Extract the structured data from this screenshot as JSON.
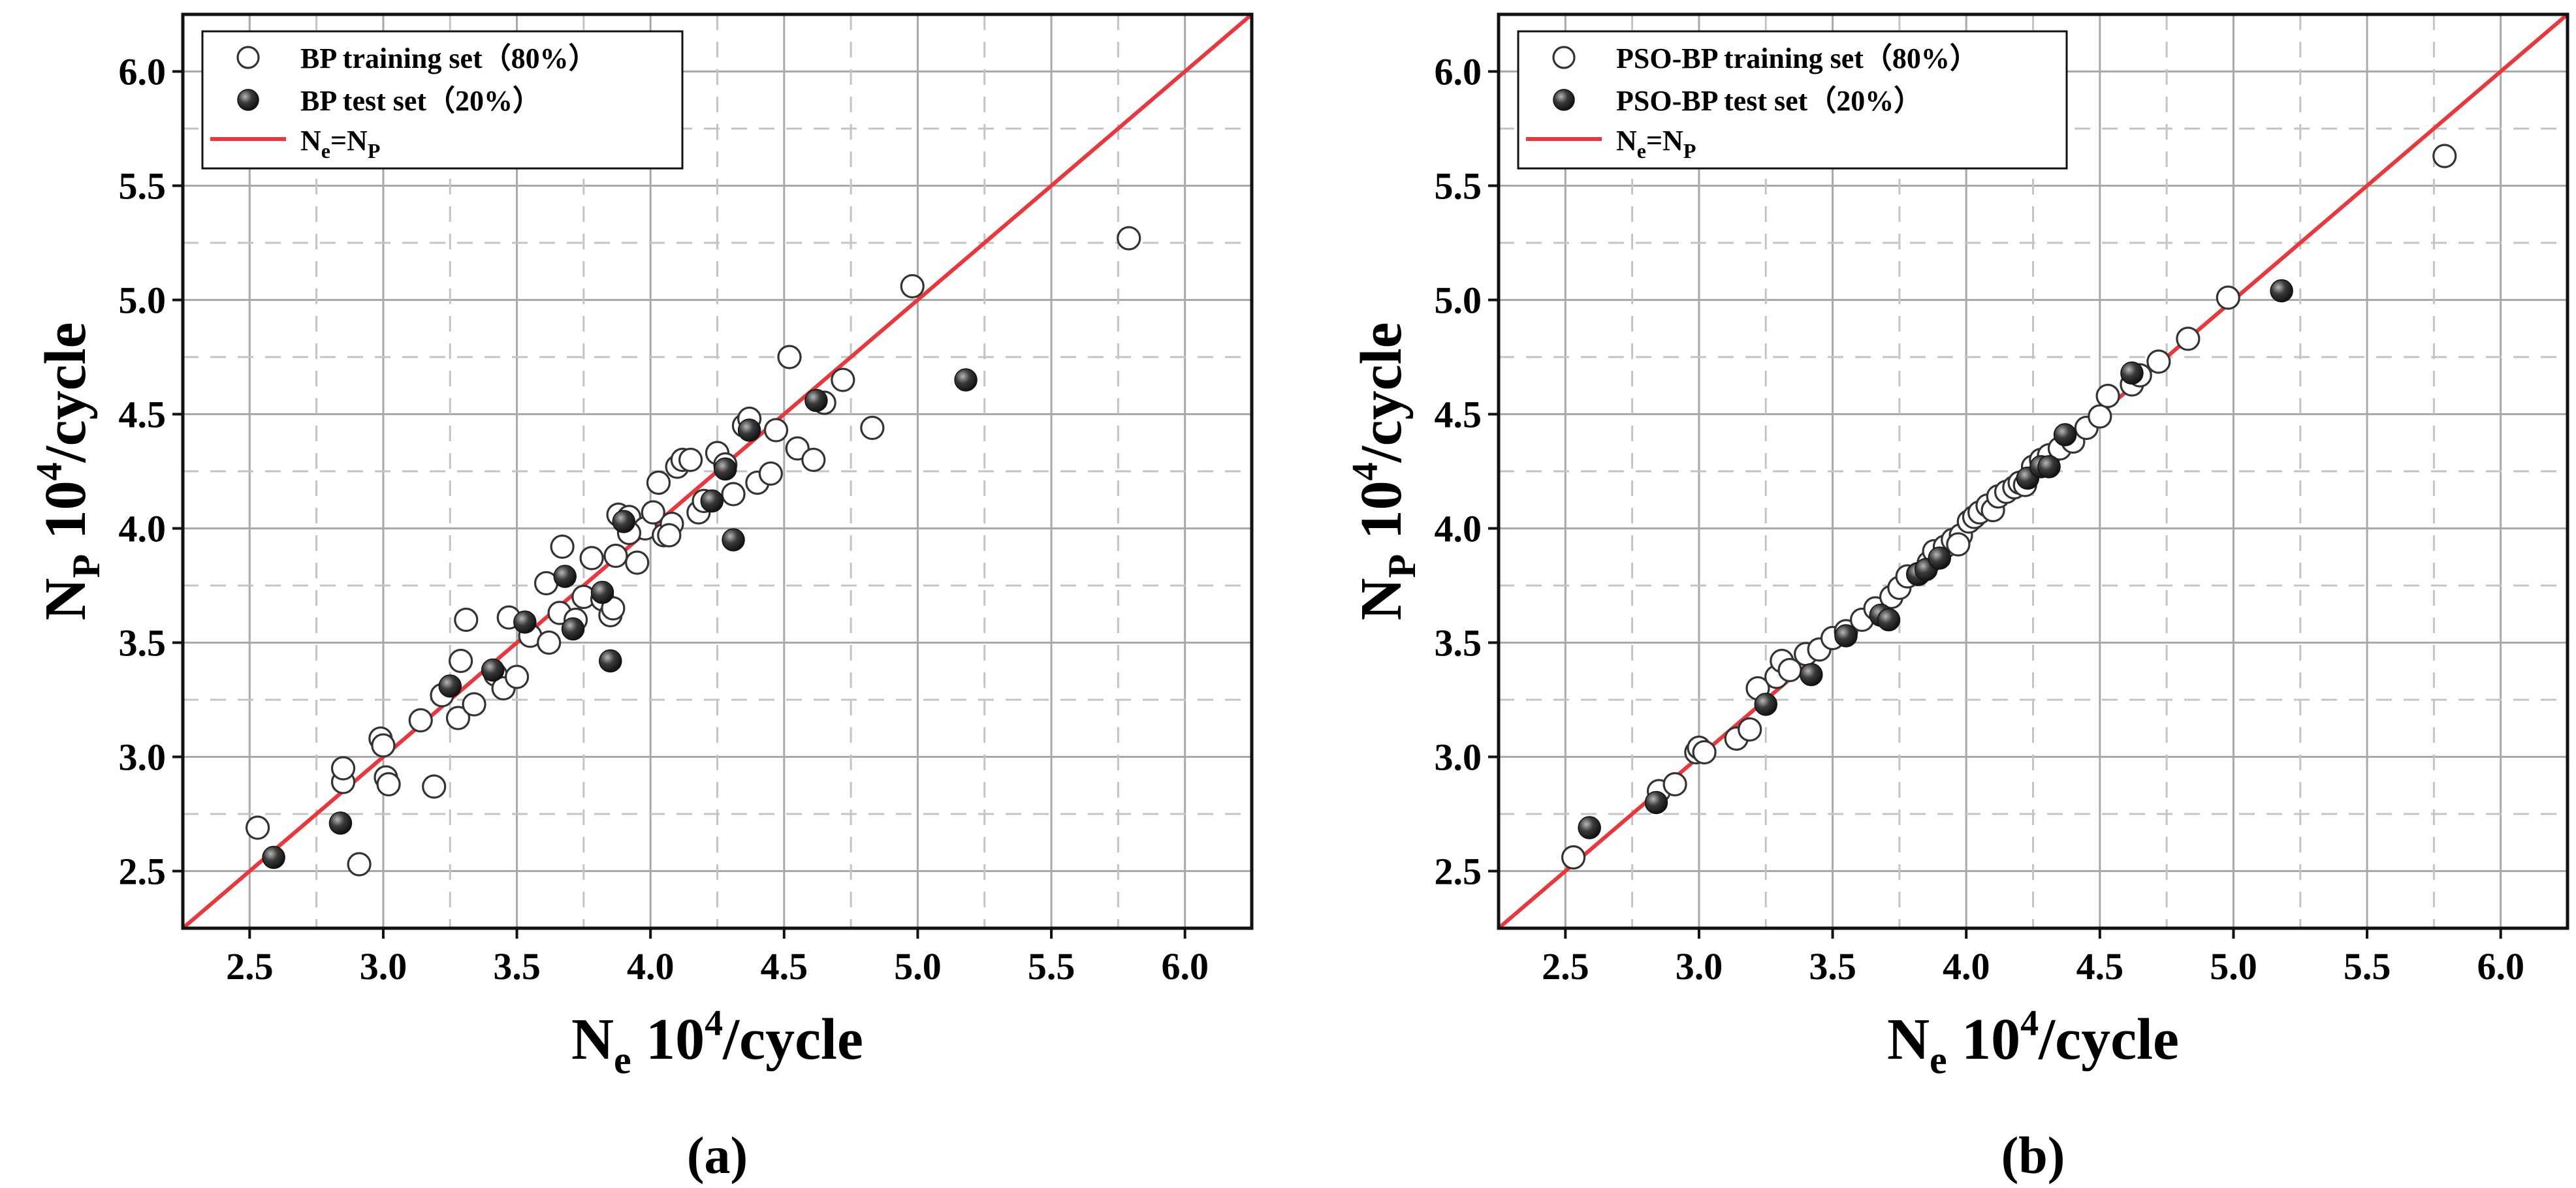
{
  "chart_data": [
    {
      "id": "a",
      "type": "scatter",
      "panel_label": "(a)",
      "xlabel": {
        "main": "N",
        "sub": "e",
        "mid": " 10",
        "sup": "4",
        "tail": "/cycle"
      },
      "ylabel": {
        "main": "N",
        "sub": "P",
        "mid": " 10",
        "sup": "4",
        "tail": "/cycle"
      },
      "xlim": [
        2.25,
        6.25
      ],
      "ylim": [
        2.25,
        6.25
      ],
      "ticks": [
        2.5,
        3.0,
        3.5,
        4.0,
        4.5,
        5.0,
        5.5,
        6.0
      ],
      "tick_labels": [
        "2.5",
        "3.0",
        "3.5",
        "4.0",
        "4.5",
        "5.0",
        "5.5",
        "6.0"
      ],
      "grid": true,
      "legend": {
        "placement": "top-left",
        "train_label": "BP training set（80%）",
        "test_label": "BP test set（20%）",
        "line_main": "N",
        "line_sub1": "e",
        "line_eq": "=N",
        "line_sub2": "P"
      },
      "colors": {
        "line": "#e8383d",
        "test_fill": "#2e2e2e",
        "train_stroke": "#333333"
      },
      "series": [
        {
          "name": "BP training set（80%）",
          "marker": "open-circle",
          "points": [
            [
              2.53,
              2.69
            ],
            [
              2.85,
              2.89
            ],
            [
              2.85,
              2.95
            ],
            [
              2.91,
              2.53
            ],
            [
              2.99,
              3.08
            ],
            [
              3.0,
              3.05
            ],
            [
              3.01,
              2.91
            ],
            [
              3.02,
              2.88
            ],
            [
              3.14,
              3.16
            ],
            [
              3.19,
              2.87
            ],
            [
              3.22,
              3.27
            ],
            [
              3.28,
              3.17
            ],
            [
              3.29,
              3.42
            ],
            [
              3.31,
              3.6
            ],
            [
              3.34,
              3.23
            ],
            [
              3.42,
              3.36
            ],
            [
              3.45,
              3.3
            ],
            [
              3.47,
              3.61
            ],
            [
              3.5,
              3.35
            ],
            [
              3.55,
              3.53
            ],
            [
              3.61,
              3.76
            ],
            [
              3.62,
              3.5
            ],
            [
              3.66,
              3.63
            ],
            [
              3.67,
              3.92
            ],
            [
              3.72,
              3.6
            ],
            [
              3.75,
              3.7
            ],
            [
              3.78,
              3.87
            ],
            [
              3.82,
              3.69
            ],
            [
              3.85,
              3.62
            ],
            [
              3.86,
              3.65
            ],
            [
              3.87,
              3.88
            ],
            [
              3.88,
              4.06
            ],
            [
              3.92,
              4.05
            ],
            [
              3.95,
              3.85
            ],
            [
              3.98,
              4.0
            ],
            [
              4.01,
              4.07
            ],
            [
              4.03,
              4.2
            ],
            [
              4.05,
              3.97
            ],
            [
              4.08,
              4.02
            ],
            [
              4.1,
              4.27
            ],
            [
              4.12,
              4.3
            ],
            [
              4.15,
              4.3
            ],
            [
              4.18,
              4.07
            ],
            [
              4.2,
              4.12
            ],
            [
              4.25,
              4.33
            ],
            [
              4.28,
              4.28
            ],
            [
              4.31,
              4.15
            ],
            [
              4.35,
              4.45
            ],
            [
              4.37,
              4.48
            ],
            [
              4.4,
              4.2
            ],
            [
              4.45,
              4.24
            ],
            [
              4.47,
              4.43
            ],
            [
              4.52,
              4.75
            ],
            [
              4.55,
              4.35
            ],
            [
              4.61,
              4.3
            ],
            [
              4.65,
              4.55
            ],
            [
              4.72,
              4.65
            ],
            [
              4.83,
              4.44
            ],
            [
              4.98,
              5.06
            ],
            [
              5.79,
              5.27
            ],
            [
              4.07,
              3.97
            ],
            [
              3.92,
              3.98
            ]
          ]
        },
        {
          "name": "BP test set（20%）",
          "marker": "filled-sphere",
          "points": [
            [
              2.59,
              2.56
            ],
            [
              2.84,
              2.71
            ],
            [
              3.25,
              3.31
            ],
            [
              3.41,
              3.38
            ],
            [
              3.53,
              3.59
            ],
            [
              3.68,
              3.79
            ],
            [
              3.71,
              3.56
            ],
            [
              3.82,
              3.72
            ],
            [
              3.85,
              3.42
            ],
            [
              3.9,
              4.03
            ],
            [
              4.23,
              4.12
            ],
            [
              4.28,
              4.26
            ],
            [
              4.31,
              3.95
            ],
            [
              4.37,
              4.43
            ],
            [
              4.62,
              4.56
            ],
            [
              5.18,
              4.65
            ]
          ]
        }
      ]
    },
    {
      "id": "b",
      "type": "scatter",
      "panel_label": "(b)",
      "xlabel": {
        "main": "N",
        "sub": "e",
        "mid": " 10",
        "sup": "4",
        "tail": "/cycle"
      },
      "ylabel": {
        "main": "N",
        "sub": "P",
        "mid": " 10",
        "sup": "4",
        "tail": "/cycle"
      },
      "xlim": [
        2.25,
        6.25
      ],
      "ylim": [
        2.25,
        6.25
      ],
      "ticks": [
        2.5,
        3.0,
        3.5,
        4.0,
        4.5,
        5.0,
        5.5,
        6.0
      ],
      "tick_labels": [
        "2.5",
        "3.0",
        "3.5",
        "4.0",
        "4.5",
        "5.0",
        "5.5",
        "6.0"
      ],
      "grid": true,
      "legend": {
        "placement": "top-left",
        "train_label": "PSO-BP training set（80%）",
        "test_label": "PSO-BP test set（20%）",
        "line_main": "N",
        "line_sub1": "e",
        "line_eq": "=N",
        "line_sub2": "P"
      },
      "colors": {
        "line": "#e8383d",
        "test_fill": "#2e2e2e",
        "train_stroke": "#333333"
      },
      "series": [
        {
          "name": "PSO-BP training set（80%）",
          "marker": "open-circle",
          "points": [
            [
              2.53,
              2.56
            ],
            [
              2.85,
              2.85
            ],
            [
              2.91,
              2.88
            ],
            [
              2.99,
              3.02
            ],
            [
              3.0,
              3.04
            ],
            [
              3.02,
              3.02
            ],
            [
              3.14,
              3.08
            ],
            [
              3.19,
              3.12
            ],
            [
              3.22,
              3.3
            ],
            [
              3.29,
              3.35
            ],
            [
              3.31,
              3.42
            ],
            [
              3.34,
              3.38
            ],
            [
              3.4,
              3.45
            ],
            [
              3.45,
              3.47
            ],
            [
              3.5,
              3.52
            ],
            [
              3.55,
              3.55
            ],
            [
              3.61,
              3.6
            ],
            [
              3.66,
              3.65
            ],
            [
              3.72,
              3.7
            ],
            [
              3.75,
              3.74
            ],
            [
              3.78,
              3.79
            ],
            [
              3.82,
              3.8
            ],
            [
              3.86,
              3.85
            ],
            [
              3.88,
              3.9
            ],
            [
              3.92,
              3.92
            ],
            [
              3.95,
              3.95
            ],
            [
              3.98,
              3.97
            ],
            [
              4.01,
              4.03
            ],
            [
              4.03,
              4.05
            ],
            [
              4.05,
              4.07
            ],
            [
              4.08,
              4.1
            ],
            [
              4.1,
              4.08
            ],
            [
              4.12,
              4.14
            ],
            [
              4.15,
              4.16
            ],
            [
              4.18,
              4.18
            ],
            [
              4.2,
              4.2
            ],
            [
              4.25,
              4.27
            ],
            [
              4.28,
              4.3
            ],
            [
              4.31,
              4.32
            ],
            [
              4.35,
              4.35
            ],
            [
              4.4,
              4.38
            ],
            [
              4.45,
              4.44
            ],
            [
              4.5,
              4.49
            ],
            [
              4.53,
              4.58
            ],
            [
              4.62,
              4.63
            ],
            [
              4.65,
              4.67
            ],
            [
              4.72,
              4.73
            ],
            [
              4.83,
              4.83
            ],
            [
              4.98,
              5.01
            ],
            [
              5.79,
              5.63
            ],
            [
              4.22,
              4.19
            ],
            [
              3.97,
              3.93
            ]
          ]
        },
        {
          "name": "PSO-BP test set（20%）",
          "marker": "filled-sphere",
          "points": [
            [
              2.59,
              2.69
            ],
            [
              2.84,
              2.8
            ],
            [
              3.25,
              3.23
            ],
            [
              3.42,
              3.36
            ],
            [
              3.55,
              3.53
            ],
            [
              3.68,
              3.62
            ],
            [
              3.71,
              3.6
            ],
            [
              3.82,
              3.8
            ],
            [
              3.85,
              3.82
            ],
            [
              3.9,
              3.87
            ],
            [
              4.23,
              4.22
            ],
            [
              4.28,
              4.27
            ],
            [
              4.31,
              4.27
            ],
            [
              4.37,
              4.41
            ],
            [
              4.62,
              4.68
            ],
            [
              5.18,
              5.04
            ]
          ]
        }
      ]
    }
  ]
}
